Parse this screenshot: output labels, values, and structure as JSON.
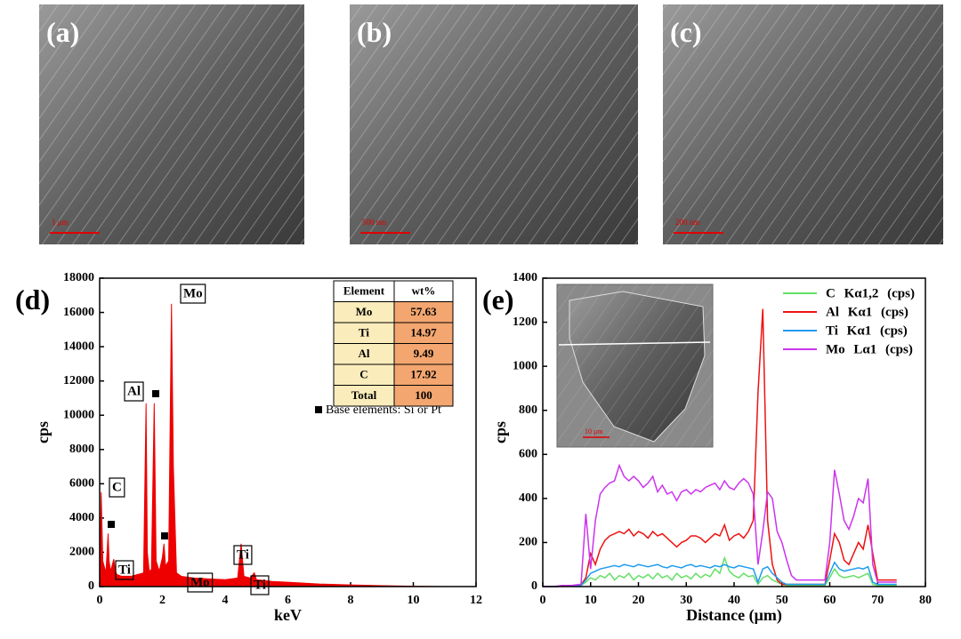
{
  "images": [
    {
      "label": "(a)",
      "scale": "1 μm"
    },
    {
      "label": "(b)",
      "scale": "500 nm"
    },
    {
      "label": "(c)",
      "scale": "200 nm"
    }
  ],
  "chart_data": [
    {
      "type": "area",
      "panel": "(d)",
      "xlabel": "keV",
      "ylabel": "cps",
      "color": "#ee0000",
      "x": [
        0,
        0.05,
        0.1,
        0.2,
        0.27,
        0.3,
        0.35,
        0.45,
        0.5,
        0.55,
        0.7,
        1.0,
        1.4,
        1.48,
        1.52,
        1.58,
        1.65,
        1.74,
        1.8,
        1.9,
        2.0,
        2.05,
        2.1,
        2.2,
        2.29,
        2.35,
        2.45,
        2.6,
        3.0,
        3.5,
        4.0,
        4.4,
        4.51,
        4.6,
        4.8,
        4.93,
        5.0,
        5.5,
        6,
        7,
        8,
        9,
        10,
        11
      ],
      "values": [
        0,
        5500,
        1500,
        800,
        3100,
        1500,
        900,
        1600,
        900,
        700,
        600,
        600,
        800,
        10700,
        2000,
        900,
        1000,
        10700,
        1500,
        900,
        1700,
        2500,
        1200,
        1500,
        16500,
        7000,
        800,
        600,
        500,
        450,
        400,
        500,
        2500,
        600,
        500,
        800,
        400,
        300,
        250,
        150,
        100,
        50,
        20,
        0
      ],
      "xlim": [
        0,
        12
      ],
      "xticks": [
        0,
        2,
        4,
        6,
        8,
        10,
        12
      ],
      "ylim": [
        0,
        18000
      ],
      "yticks": [
        0,
        2000,
        4000,
        6000,
        8000,
        10000,
        12000,
        14000,
        16000,
        18000
      ],
      "annotations": [
        "Mo",
        "Al",
        "C",
        "Ti",
        "Mo",
        "Ti",
        "Ti"
      ],
      "marker_note": "Base elements: Si or Pt",
      "table": {
        "header": [
          "Element",
          "wt%"
        ],
        "rows": [
          [
            "Mo",
            57.63
          ],
          [
            "Ti",
            14.97
          ],
          [
            "Al",
            9.49
          ],
          [
            "C",
            17.92
          ],
          [
            "Total",
            100
          ]
        ]
      }
    },
    {
      "type": "line",
      "panel": "(e)",
      "xlabel": "Distance (μm)",
      "ylabel": "cps",
      "inset_scale": "10 μm",
      "x": [
        0,
        1,
        2,
        3,
        4,
        5,
        6,
        7,
        8,
        9,
        10,
        11,
        12,
        13,
        14,
        15,
        16,
        17,
        18,
        19,
        20,
        21,
        22,
        23,
        24,
        25,
        26,
        27,
        28,
        29,
        30,
        31,
        32,
        33,
        34,
        35,
        36,
        37,
        38,
        39,
        40,
        41,
        42,
        43,
        44,
        45,
        46,
        47,
        48,
        49,
        50,
        51,
        52,
        53,
        54,
        55,
        56,
        57,
        58,
        59,
        60,
        61,
        62,
        63,
        64,
        65,
        66,
        67,
        68,
        69,
        70,
        71,
        72,
        73,
        74
      ],
      "xlim": [
        0,
        80
      ],
      "xticks": [
        0,
        10,
        20,
        30,
        40,
        50,
        60,
        70,
        80
      ],
      "ylim": [
        0,
        1400
      ],
      "yticks": [
        0,
        200,
        400,
        600,
        800,
        1000,
        1200,
        1400
      ],
      "series": [
        {
          "name": "C Kα1,2 (cps)",
          "color": "#66e066",
          "values": [
            0,
            0,
            0,
            0,
            2,
            3,
            5,
            5,
            5,
            20,
            40,
            30,
            50,
            40,
            60,
            30,
            50,
            40,
            60,
            30,
            50,
            40,
            55,
            35,
            60,
            40,
            50,
            30,
            60,
            40,
            50,
            35,
            60,
            40,
            55,
            45,
            80,
            60,
            130,
            70,
            50,
            40,
            60,
            45,
            50,
            10,
            40,
            50,
            30,
            20,
            10,
            5,
            5,
            5,
            5,
            5,
            5,
            5,
            5,
            5,
            40,
            80,
            50,
            40,
            45,
            50,
            40,
            50,
            60,
            10,
            5,
            5,
            5,
            5,
            5
          ]
        },
        {
          "name": "Al Kα1 (cps)",
          "color": "#ee1111",
          "values": [
            0,
            0,
            0,
            0,
            2,
            3,
            5,
            5,
            8,
            40,
            150,
            100,
            170,
            210,
            230,
            240,
            250,
            240,
            260,
            230,
            250,
            240,
            220,
            250,
            230,
            240,
            220,
            200,
            180,
            200,
            210,
            230,
            230,
            220,
            200,
            220,
            240,
            230,
            280,
            210,
            230,
            240,
            220,
            250,
            300,
            880,
            1260,
            300,
            100,
            30,
            10,
            10,
            10,
            10,
            10,
            10,
            10,
            10,
            10,
            10,
            120,
            240,
            200,
            120,
            100,
            150,
            200,
            170,
            280,
            150,
            30,
            30,
            30,
            30,
            30
          ]
        },
        {
          "name": "Ti Kα1 (cps)",
          "color": "#1e9bef",
          "values": [
            0,
            0,
            0,
            0,
            2,
            3,
            5,
            5,
            5,
            30,
            60,
            70,
            80,
            85,
            90,
            95,
            90,
            100,
            95,
            90,
            100,
            95,
            90,
            95,
            100,
            90,
            85,
            95,
            90,
            85,
            95,
            100,
            90,
            95,
            90,
            85,
            95,
            90,
            100,
            90,
            85,
            95,
            90,
            85,
            80,
            20,
            80,
            90,
            60,
            40,
            20,
            10,
            10,
            10,
            10,
            10,
            10,
            10,
            10,
            10,
            60,
            110,
            80,
            70,
            75,
            80,
            85,
            80,
            90,
            20,
            10,
            10,
            10,
            10,
            10
          ]
        },
        {
          "name": "Mo Lα1 (cps)",
          "color": "#cc33ee",
          "values": [
            0,
            0,
            0,
            2,
            5,
            5,
            5,
            8,
            10,
            330,
            80,
            300,
            420,
            450,
            470,
            480,
            550,
            500,
            480,
            500,
            480,
            450,
            470,
            500,
            430,
            460,
            420,
            430,
            390,
            430,
            440,
            420,
            440,
            430,
            450,
            460,
            470,
            440,
            480,
            450,
            440,
            470,
            490,
            470,
            420,
            100,
            250,
            430,
            400,
            250,
            200,
            120,
            50,
            30,
            30,
            30,
            30,
            30,
            30,
            30,
            200,
            530,
            420,
            300,
            260,
            320,
            400,
            380,
            490,
            100,
            20,
            20,
            20,
            20,
            20
          ]
        }
      ]
    }
  ]
}
